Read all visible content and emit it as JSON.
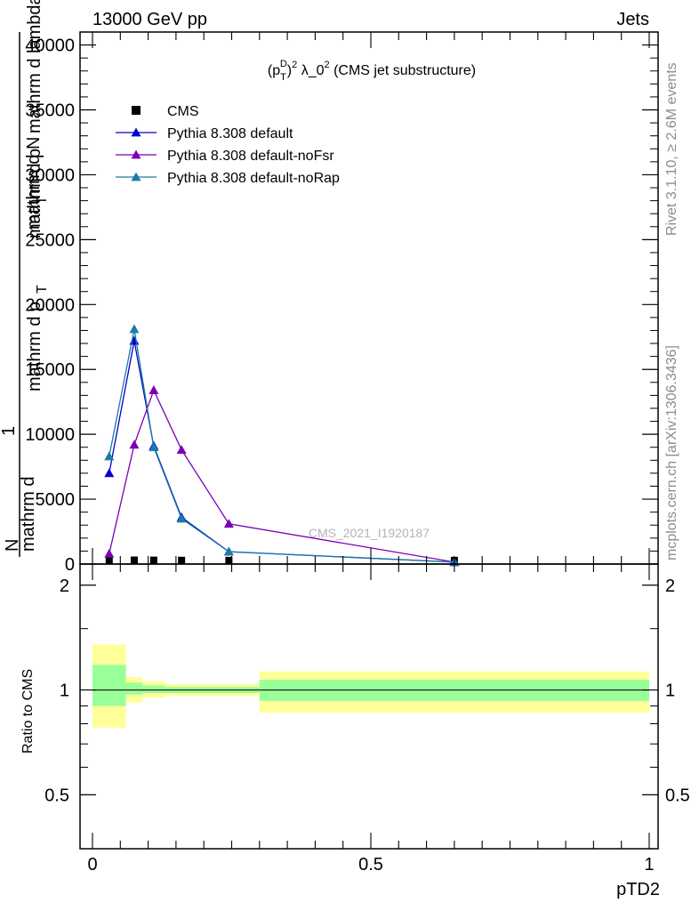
{
  "header": {
    "energy_label": "13000 GeV pp",
    "category_label": "Jets",
    "rivet_label": "Rivet 3.1.10, ≥ 2.6M events",
    "source_label": "mcplots.cern.ch [arXiv:1306.3436]",
    "watermark": "CMS_2021_I1920187"
  },
  "chart_data": [
    {
      "type": "line",
      "title": "(p_T^D)^2 λ_0^2 (CMS jet substructure)",
      "title_parts": {
        "p": "(p",
        "sup_d": "D",
        "sub_t": "T",
        "close": ")",
        "sup_2": "2",
        "rest": " λ_0",
        "sup_2b": "2",
        "tail": " (CMS jet substructure)"
      },
      "ylabel_lines": [
        "mathrm d N",
        "1",
        "mathrm d p",
        "T",
        "mathrm d p",
        "T",
        "mathrm d lambda",
        "mathrm d",
        "N"
      ],
      "ylabel_main": "mathrm d N",
      "xlim": [
        0,
        1
      ],
      "ylim": [
        0,
        41000
      ],
      "yticks": [
        0,
        5000,
        10000,
        15000,
        20000,
        25000,
        30000,
        35000,
        40000
      ],
      "ytick_labels": [
        "0",
        "5000",
        "10000",
        "15000",
        "20000",
        "25000",
        "30000",
        "35000",
        "40000"
      ],
      "legend_position": "top-left",
      "series": [
        {
          "name": "CMS",
          "color": "#000000",
          "marker": "square",
          "x": [
            0.03,
            0.075,
            0.11,
            0.16,
            0.245,
            0.65
          ],
          "values": [
            20,
            30,
            25,
            15,
            10,
            5
          ]
        },
        {
          "name": "Pythia 8.308 default",
          "color": "#0000cc",
          "marker": "triangle",
          "x": [
            0.03,
            0.075,
            0.11,
            0.16,
            0.245,
            0.65
          ],
          "values": [
            7000,
            17200,
            9100,
            3600,
            950,
            150
          ]
        },
        {
          "name": "Pythia 8.308 default-noFsr",
          "color": "#7b00b4",
          "marker": "triangle",
          "x": [
            0.03,
            0.075,
            0.11,
            0.16,
            0.245,
            0.65
          ],
          "values": [
            800,
            9200,
            13400,
            8800,
            3100,
            150
          ]
        },
        {
          "name": "Pythia 8.308 default-noRap",
          "color": "#1b7ba7",
          "marker": "triangle",
          "x": [
            0.03,
            0.075,
            0.11,
            0.16,
            0.245,
            0.65
          ],
          "values": [
            8300,
            18100,
            9000,
            3500,
            950,
            150
          ]
        }
      ]
    },
    {
      "type": "area",
      "ylabel": "Ratio to CMS",
      "xlabel": "pTD2",
      "xlim": [
        0,
        1
      ],
      "ylim": [
        0.35,
        2.3
      ],
      "xticks": [
        0,
        0.5,
        1
      ],
      "xtick_labels": [
        "0",
        "0.5",
        "1"
      ],
      "yticks": [
        0.5,
        1,
        2
      ],
      "ytick_labels": [
        "0.5",
        "1",
        "2"
      ],
      "band_colors": {
        "inner": "#99ff99",
        "outer": "#ffff99"
      },
      "bins": [
        {
          "lo": 0.0,
          "hi": 0.06,
          "in_lo": 0.9,
          "in_hi": 1.18,
          "out_lo": 0.78,
          "out_hi": 1.35
        },
        {
          "lo": 0.06,
          "hi": 0.09,
          "in_lo": 0.97,
          "in_hi": 1.05,
          "out_lo": 0.92,
          "out_hi": 1.09
        },
        {
          "lo": 0.09,
          "hi": 0.13,
          "in_lo": 0.98,
          "in_hi": 1.03,
          "out_lo": 0.95,
          "out_hi": 1.06
        },
        {
          "lo": 0.13,
          "hi": 0.19,
          "in_lo": 0.98,
          "in_hi": 1.02,
          "out_lo": 0.96,
          "out_hi": 1.04
        },
        {
          "lo": 0.19,
          "hi": 0.3,
          "in_lo": 0.98,
          "in_hi": 1.02,
          "out_lo": 0.96,
          "out_hi": 1.04
        },
        {
          "lo": 0.3,
          "hi": 1.0,
          "in_lo": 0.93,
          "in_hi": 1.07,
          "out_lo": 0.86,
          "out_hi": 1.13
        }
      ]
    }
  ]
}
